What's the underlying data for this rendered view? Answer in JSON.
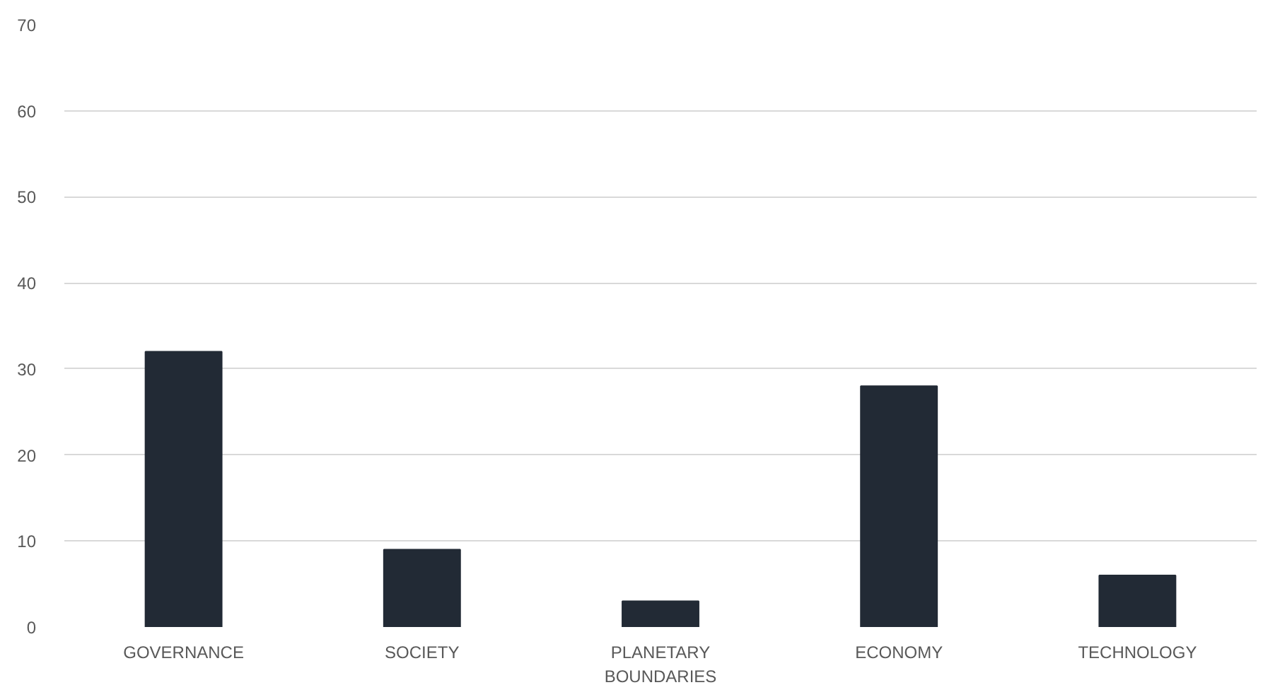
{
  "chart_data": {
    "type": "bar",
    "categories": [
      "GOVERNANCE",
      "SOCIETY",
      "PLANETARY BOUNDARIES",
      "ECONOMY",
      "TECHNOLOGY"
    ],
    "values": [
      32,
      9,
      3,
      28,
      6
    ],
    "color": "#222a35",
    "ylim": [
      0,
      70
    ],
    "yticks": [
      0,
      10,
      20,
      30,
      40,
      50,
      60,
      70
    ],
    "grid": "y"
  }
}
